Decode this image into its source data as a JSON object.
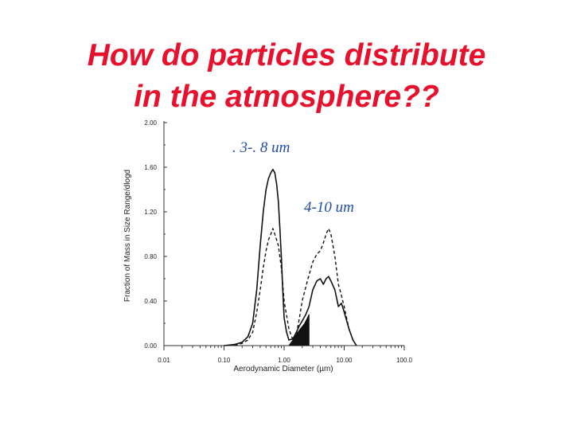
{
  "slide": {
    "title_line1": "How do particles distribute",
    "title_line2": "in the atmosphere??",
    "title_color": "#e8112d"
  },
  "annotations": {
    "fine_mode": ". 3-. 8 um",
    "coarse_mode": "4-10 um",
    "color": "#1f4ea8"
  },
  "chart_data": {
    "type": "line",
    "xscale": "log",
    "xlabel": "Aerodynamic Diameter (µm)",
    "ylabel": "Fraction of Mass in Size Range/dlogd",
    "xlim": [
      0.01,
      100
    ],
    "ylim": [
      0,
      2.0
    ],
    "xticks": [
      0.01,
      0.1,
      1,
      10,
      100
    ],
    "xtick_labels": [
      "0.01",
      "0.10",
      "1.00",
      "10.00",
      "100.0"
    ],
    "yticks": [
      0,
      0.4,
      0.8,
      1.2,
      1.6,
      2.0
    ],
    "ytick_labels": [
      "0.00",
      "0.40",
      "0.80",
      "1.20",
      "1.60",
      "2.00"
    ],
    "grid": false,
    "series": [
      {
        "style": "solid",
        "points": [
          [
            0.1,
            0.0
          ],
          [
            0.15,
            0.01
          ],
          [
            0.2,
            0.03
          ],
          [
            0.25,
            0.08
          ],
          [
            0.3,
            0.2
          ],
          [
            0.35,
            0.5
          ],
          [
            0.4,
            0.9
          ],
          [
            0.45,
            1.2
          ],
          [
            0.5,
            1.4
          ],
          [
            0.55,
            1.5
          ],
          [
            0.6,
            1.55
          ],
          [
            0.65,
            1.58
          ],
          [
            0.7,
            1.55
          ],
          [
            0.75,
            1.45
          ],
          [
            0.8,
            1.3
          ],
          [
            0.85,
            1.05
          ],
          [
            0.9,
            0.8
          ],
          [
            0.95,
            0.5
          ],
          [
            1.0,
            0.25
          ],
          [
            1.1,
            0.12
          ],
          [
            1.2,
            0.05
          ],
          [
            1.4,
            0.06
          ],
          [
            1.6,
            0.12
          ],
          [
            1.8,
            0.18
          ],
          [
            2.0,
            0.22
          ],
          [
            2.3,
            0.28
          ],
          [
            2.6,
            0.35
          ],
          [
            3.0,
            0.5
          ],
          [
            3.5,
            0.58
          ],
          [
            4.0,
            0.6
          ],
          [
            4.5,
            0.55
          ],
          [
            5.0,
            0.6
          ],
          [
            5.5,
            0.62
          ],
          [
            6.0,
            0.58
          ],
          [
            7.0,
            0.5
          ],
          [
            8.0,
            0.35
          ],
          [
            9.0,
            0.38
          ],
          [
            10.0,
            0.3
          ],
          [
            12.0,
            0.15
          ],
          [
            14.0,
            0.05
          ],
          [
            16.0,
            0.0
          ]
        ]
      },
      {
        "style": "dashed",
        "points": [
          [
            0.15,
            0.0
          ],
          [
            0.2,
            0.02
          ],
          [
            0.25,
            0.05
          ],
          [
            0.3,
            0.12
          ],
          [
            0.35,
            0.3
          ],
          [
            0.4,
            0.5
          ],
          [
            0.45,
            0.7
          ],
          [
            0.5,
            0.85
          ],
          [
            0.55,
            0.95
          ],
          [
            0.6,
            1.0
          ],
          [
            0.65,
            1.05
          ],
          [
            0.7,
            1.0
          ],
          [
            0.8,
            0.9
          ],
          [
            0.9,
            0.7
          ],
          [
            1.0,
            0.4
          ],
          [
            1.2,
            0.15
          ],
          [
            1.4,
            0.05
          ],
          [
            1.6,
            0.1
          ],
          [
            1.8,
            0.25
          ],
          [
            2.0,
            0.4
          ],
          [
            2.5,
            0.6
          ],
          [
            3.0,
            0.75
          ],
          [
            3.5,
            0.82
          ],
          [
            4.0,
            0.85
          ],
          [
            4.5,
            0.92
          ],
          [
            5.0,
            1.0
          ],
          [
            5.5,
            1.05
          ],
          [
            6.0,
            1.0
          ],
          [
            7.0,
            0.8
          ],
          [
            8.0,
            0.55
          ],
          [
            9.0,
            0.45
          ],
          [
            10.0,
            0.35
          ],
          [
            12.0,
            0.15
          ],
          [
            14.0,
            0.05
          ],
          [
            16.0,
            0.0
          ]
        ]
      }
    ],
    "shaded_region": {
      "style": "filled-black",
      "points": [
        [
          1.2,
          0.0
        ],
        [
          1.4,
          0.05
        ],
        [
          1.6,
          0.1
        ],
        [
          1.8,
          0.14
        ],
        [
          2.0,
          0.17
        ],
        [
          2.2,
          0.2
        ],
        [
          2.4,
          0.24
        ],
        [
          2.6,
          0.28
        ],
        [
          2.6,
          0.0
        ]
      ]
    }
  }
}
